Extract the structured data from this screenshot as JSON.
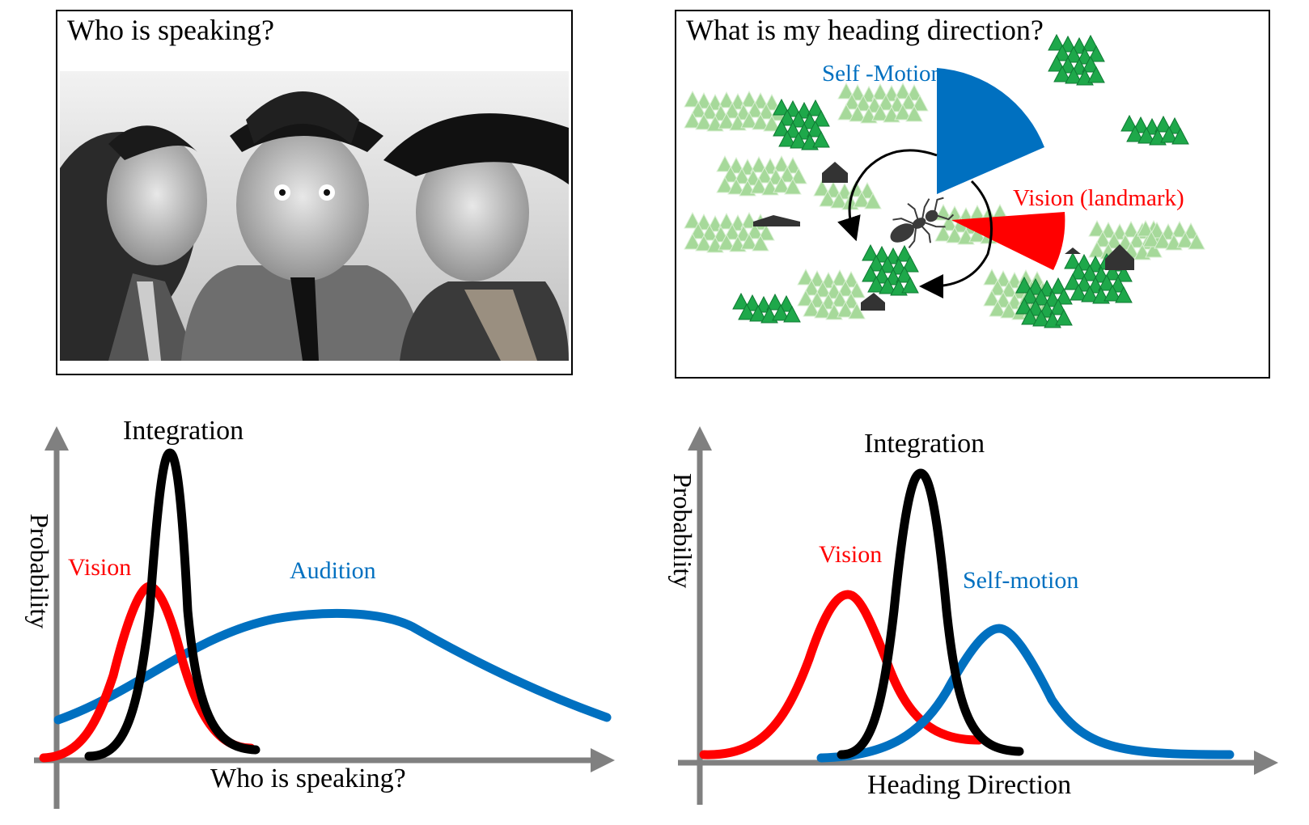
{
  "top_left": {
    "title": "Who is speaking?"
  },
  "top_right": {
    "title": "What is my heading direction?",
    "self_motion_label": "Self -Motion",
    "vision_landmark_label": "Vision (landmark)"
  },
  "bottom_left": {
    "y_axis_label": "Probability",
    "x_axis_label": "Who is speaking?",
    "integration_label": "Integration",
    "vision_label": "Vision",
    "audition_label": "Audition"
  },
  "bottom_right": {
    "y_axis_label": "Probability",
    "x_axis_label": "Heading Direction",
    "integration_label": "Integration",
    "vision_label": "Vision",
    "self_motion_label": "Self-motion"
  },
  "colors": {
    "vision": "#ff0000",
    "audition": "#0070c0",
    "self_motion": "#0070c0",
    "integration": "#000000",
    "axis": "#808080",
    "tree_dark": "#1ea84a",
    "tree_light": "#a6d99a"
  }
}
